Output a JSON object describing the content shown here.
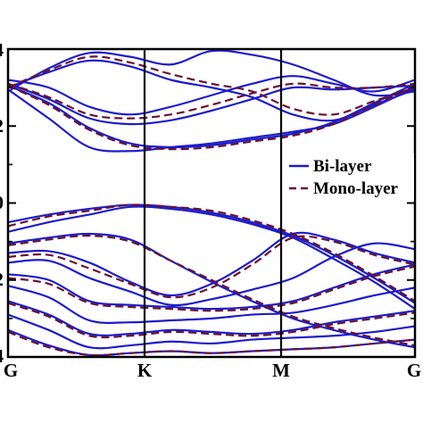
{
  "chart_data": {
    "type": "line",
    "title": "",
    "xlabel": "",
    "ylabel": "",
    "xticks": [
      "G",
      "K",
      "M",
      "G"
    ],
    "ytick_labels": [
      "4",
      "2",
      "0",
      "2",
      "4"
    ],
    "ylim": [
      -4,
      4
    ],
    "grid": false,
    "legend_position": "right",
    "colors": {
      "bilayer": "#1c1ccc",
      "monolayer": "#6b1030"
    },
    "legend": [
      {
        "label": "Bi-layer",
        "style": "solid",
        "color": "#1c1ccc"
      },
      {
        "label": "Mono-layer",
        "style": "dashed",
        "color": "#6b1030"
      }
    ],
    "x_path": [
      0.0,
      0.1,
      0.2,
      0.3,
      0.4,
      0.5,
      0.6,
      0.7,
      0.8,
      0.9,
      1.0
    ],
    "bilayer": [
      {
        "x": [
          0.0,
          0.1,
          0.2,
          0.3,
          0.4,
          0.5,
          0.6,
          0.7,
          0.8,
          0.9,
          1.0
        ],
        "y": [
          3.05,
          2.6,
          1.95,
          1.55,
          1.45,
          1.5,
          1.65,
          1.8,
          2.1,
          2.6,
          3.1
        ]
      },
      {
        "x": [
          0.0,
          0.1,
          0.2,
          0.3,
          0.4,
          0.5,
          0.6,
          0.7,
          0.8,
          0.9,
          1.0
        ],
        "y": [
          2.95,
          2.2,
          1.45,
          1.35,
          1.45,
          1.55,
          1.7,
          1.85,
          2.05,
          2.5,
          3.0
        ]
      },
      {
        "x": [
          0.0,
          0.1,
          0.2,
          0.3,
          0.4,
          0.5,
          0.6,
          0.7,
          0.8,
          0.9,
          1.0
        ],
        "y": [
          3.1,
          2.7,
          2.2,
          2.05,
          2.15,
          2.4,
          2.7,
          3.0,
          2.95,
          3.0,
          3.05
        ]
      },
      {
        "x": [
          0.0,
          0.1,
          0.2,
          0.3,
          0.4,
          0.5,
          0.6,
          0.7,
          0.8,
          0.9,
          1.0
        ],
        "y": [
          3.2,
          3.0,
          2.5,
          2.3,
          2.5,
          2.8,
          3.1,
          3.3,
          3.1,
          2.9,
          3.2
        ]
      },
      {
        "x": [
          0.0,
          0.1,
          0.2,
          0.3,
          0.4,
          0.5,
          0.6,
          0.7,
          0.8,
          0.9,
          1.0
        ],
        "y": [
          3.0,
          3.4,
          3.7,
          3.55,
          3.2,
          3.0,
          2.75,
          2.3,
          2.15,
          2.55,
          2.95
        ]
      },
      {
        "x": [
          0.0,
          0.1,
          0.2,
          0.3,
          0.4,
          0.5,
          0.6,
          0.7,
          0.8,
          0.9,
          1.0
        ],
        "y": [
          2.9,
          3.5,
          3.9,
          3.8,
          3.6,
          3.95,
          3.85,
          3.6,
          3.2,
          2.8,
          2.9
        ]
      },
      {
        "x": [
          0.0,
          0.1,
          0.2,
          0.3,
          0.4,
          0.5,
          0.6,
          0.7,
          0.8,
          0.9,
          1.0
        ],
        "y": [
          -0.5,
          -0.3,
          -0.15,
          -0.05,
          -0.1,
          -0.25,
          -0.5,
          -0.85,
          -1.35,
          -1.95,
          -2.6
        ]
      },
      {
        "x": [
          0.0,
          0.1,
          0.2,
          0.3,
          0.4,
          0.5,
          0.6,
          0.7,
          0.8,
          0.9,
          1.0
        ],
        "y": [
          -0.75,
          -0.5,
          -0.3,
          -0.1,
          -0.15,
          -0.3,
          -0.55,
          -0.9,
          -1.45,
          -2.05,
          -2.75
        ]
      },
      {
        "x": [
          0.0,
          0.1,
          0.2,
          0.3,
          0.4,
          0.5,
          0.6,
          0.7,
          0.8,
          0.9,
          1.0
        ],
        "y": [
          -1.05,
          -0.9,
          -0.8,
          -0.95,
          -1.5,
          -2.05,
          -2.55,
          -3.0,
          -3.3,
          -3.55,
          -3.75
        ]
      },
      {
        "x": [
          0.0,
          0.1,
          0.2,
          0.3,
          0.4,
          0.5,
          0.6,
          0.7,
          0.8,
          0.9,
          1.0
        ],
        "y": [
          -1.3,
          -1.25,
          -1.55,
          -2.05,
          -2.4,
          -2.1,
          -1.5,
          -0.8,
          -0.95,
          -1.3,
          -1.55
        ]
      },
      {
        "x": [
          0.0,
          0.1,
          0.2,
          0.3,
          0.4,
          0.5,
          0.6,
          0.7,
          0.8,
          0.9,
          1.0
        ],
        "y": [
          -1.55,
          -1.5,
          -1.95,
          -2.3,
          -2.65,
          -2.5,
          -2.25,
          -1.95,
          -1.4,
          -1.05,
          -1.2
        ]
      },
      {
        "x": [
          0.0,
          0.1,
          0.2,
          0.3,
          0.4,
          0.5,
          0.6,
          0.7,
          0.8,
          0.9,
          1.0
        ],
        "y": [
          -1.85,
          -2.0,
          -2.55,
          -2.65,
          -2.7,
          -2.75,
          -2.7,
          -2.55,
          -2.2,
          -1.85,
          -1.6
        ]
      },
      {
        "x": [
          0.0,
          0.1,
          0.2,
          0.3,
          0.4,
          0.5,
          0.6,
          0.7,
          0.8,
          0.9,
          1.0
        ],
        "y": [
          -2.15,
          -2.45,
          -3.05,
          -3.1,
          -3.05,
          -3.0,
          -2.9,
          -2.85,
          -2.65,
          -2.4,
          -2.2
        ]
      },
      {
        "x": [
          0.0,
          0.1,
          0.2,
          0.3,
          0.4,
          0.5,
          0.6,
          0.7,
          0.8,
          0.9,
          1.0
        ],
        "y": [
          -2.55,
          -2.9,
          -3.4,
          -3.4,
          -3.3,
          -3.35,
          -3.4,
          -3.3,
          -3.1,
          -2.95,
          -2.8
        ]
      },
      {
        "x": [
          0.0,
          0.1,
          0.2,
          0.3,
          0.4,
          0.5,
          0.6,
          0.7,
          0.8,
          0.9,
          1.0
        ],
        "y": [
          -2.9,
          -3.3,
          -3.75,
          -3.7,
          -3.6,
          -3.65,
          -3.55,
          -3.5,
          -3.45,
          -3.35,
          -3.2
        ]
      },
      {
        "x": [
          0.0,
          0.1,
          0.2,
          0.3,
          0.4,
          0.5,
          0.6,
          0.7,
          0.8,
          0.9,
          1.0
        ],
        "y": [
          -3.3,
          -3.7,
          -3.95,
          -3.9,
          -3.85,
          -3.9,
          -3.85,
          -3.8,
          -3.75,
          -3.65,
          -3.55
        ]
      }
    ],
    "monolayer": [
      {
        "x": [
          0.0,
          0.1,
          0.2,
          0.3,
          0.4,
          0.5,
          0.6,
          0.7,
          0.8,
          0.9,
          1.0
        ],
        "y": [
          3.05,
          2.55,
          1.9,
          1.5,
          1.4,
          1.45,
          1.6,
          1.75,
          2.05,
          2.55,
          3.05
        ]
      },
      {
        "x": [
          0.0,
          0.1,
          0.2,
          0.3,
          0.4,
          0.5,
          0.6,
          0.7,
          0.8,
          0.9,
          1.0
        ],
        "y": [
          3.1,
          2.75,
          2.3,
          2.2,
          2.3,
          2.55,
          2.85,
          3.1,
          3.0,
          3.0,
          3.1
        ]
      },
      {
        "x": [
          0.0,
          0.1,
          0.2,
          0.3,
          0.4,
          0.5,
          0.6,
          0.7,
          0.8,
          0.9,
          1.0
        ],
        "y": [
          3.0,
          3.45,
          3.8,
          3.65,
          3.35,
          3.1,
          2.9,
          2.45,
          2.3,
          2.65,
          3.0
        ]
      },
      {
        "x": [
          0.0,
          0.1,
          0.2,
          0.3,
          0.4,
          0.5,
          0.6,
          0.7,
          0.8,
          0.9,
          1.0
        ],
        "y": [
          -0.6,
          -0.35,
          -0.2,
          -0.05,
          -0.1,
          -0.2,
          -0.45,
          -0.8,
          -1.3,
          -1.9,
          -2.55
        ]
      },
      {
        "x": [
          0.0,
          0.1,
          0.2,
          0.3,
          0.4,
          0.5,
          0.6,
          0.7,
          0.8,
          0.9,
          1.0
        ],
        "y": [
          -1.1,
          -0.95,
          -0.85,
          -1.0,
          -1.5,
          -2.0,
          -2.5,
          -2.95,
          -3.25,
          -3.5,
          -3.7
        ]
      },
      {
        "x": [
          0.0,
          0.1,
          0.2,
          0.3,
          0.4,
          0.5,
          0.6,
          0.7,
          0.8,
          0.9,
          1.0
        ],
        "y": [
          -1.4,
          -1.35,
          -1.7,
          -2.1,
          -2.45,
          -2.2,
          -1.6,
          -0.9,
          -1.0,
          -1.35,
          -1.6
        ]
      },
      {
        "x": [
          0.0,
          0.1,
          0.2,
          0.3,
          0.4,
          0.5,
          0.6,
          0.7,
          0.8,
          0.9,
          1.0
        ],
        "y": [
          -1.95,
          -2.1,
          -2.6,
          -2.7,
          -2.75,
          -2.8,
          -2.75,
          -2.6,
          -2.25,
          -1.9,
          -1.65
        ]
      },
      {
        "x": [
          0.0,
          0.1,
          0.2,
          0.3,
          0.4,
          0.5,
          0.6,
          0.7,
          0.8,
          0.9,
          1.0
        ],
        "y": [
          -2.6,
          -2.95,
          -3.45,
          -3.45,
          -3.35,
          -3.4,
          -3.45,
          -3.35,
          -3.15,
          -3.0,
          -2.85
        ]
      },
      {
        "x": [
          0.0,
          0.1,
          0.2,
          0.3,
          0.4,
          0.5,
          0.6,
          0.7,
          0.8,
          0.9,
          1.0
        ],
        "y": [
          -3.35,
          -3.75,
          -3.95,
          -3.9,
          -3.85,
          -3.9,
          -3.85,
          -3.8,
          -3.75,
          -3.65,
          -3.55
        ]
      }
    ]
  }
}
